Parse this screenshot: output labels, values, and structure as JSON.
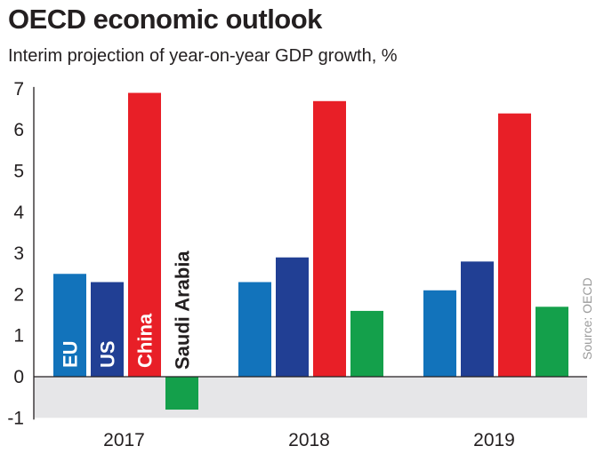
{
  "chart_data": {
    "type": "bar",
    "title": "OECD economic outlook",
    "subtitle": "Interim projection of year-on-year GDP growth, %",
    "xlabel": "",
    "ylabel": "",
    "ylim": [
      -1,
      7
    ],
    "yticks": [
      "-1",
      "0",
      "1",
      "2",
      "3",
      "4",
      "5",
      "6",
      "7"
    ],
    "categories": [
      "2017",
      "2018",
      "2019"
    ],
    "series": [
      {
        "name": "EU",
        "color": "#1273bb",
        "label_color": "#ffffff",
        "values": [
          2.5,
          2.3,
          2.1
        ]
      },
      {
        "name": "US",
        "color": "#213f94",
        "label_color": "#ffffff",
        "values": [
          2.3,
          2.9,
          2.8
        ]
      },
      {
        "name": "China",
        "color": "#e81f27",
        "label_color": "#ffffff",
        "values": [
          6.9,
          6.7,
          6.4
        ]
      },
      {
        "name": "Saudi Arabia",
        "color": "#14a04b",
        "label_color": "#231f20",
        "values": [
          -0.8,
          1.6,
          1.7
        ]
      }
    ],
    "negative_region_color": "#e6e6e8",
    "legend": "inline-labels-on-2017-bars",
    "grid": false,
    "source": "Source: OECD"
  }
}
